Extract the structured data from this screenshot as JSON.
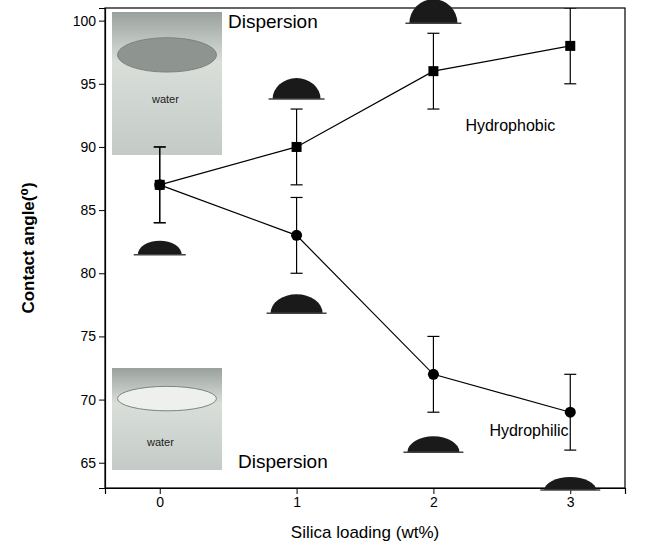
{
  "chart_data": {
    "type": "line",
    "x_label": "Silica loading (wt%)",
    "y_label": "Contact angle(⁰)",
    "x": [
      0,
      1,
      2,
      3
    ],
    "series": [
      {
        "name": "Hydrophobic",
        "color": "#000000",
        "marker": "square",
        "line_style": "solid",
        "values": [
          87,
          90,
          96,
          98
        ],
        "errors": [
          3,
          3,
          3,
          3
        ]
      },
      {
        "name": "Hydrophilic",
        "color": "#000000",
        "marker": "circle",
        "line_style": "solid",
        "values": [
          87,
          83,
          72,
          69
        ],
        "errors": [
          3,
          3,
          3,
          3
        ]
      }
    ],
    "annotations": [
      "Dispersion",
      "Dispersion",
      "water",
      "water"
    ],
    "xlim": [
      -0.4,
      3.4
    ],
    "ylim": [
      63,
      101
    ],
    "xticks": [
      0,
      1,
      2,
      3
    ],
    "yticks": [
      65,
      70,
      75,
      80,
      85,
      90,
      95,
      100
    ],
    "grid": false
  }
}
